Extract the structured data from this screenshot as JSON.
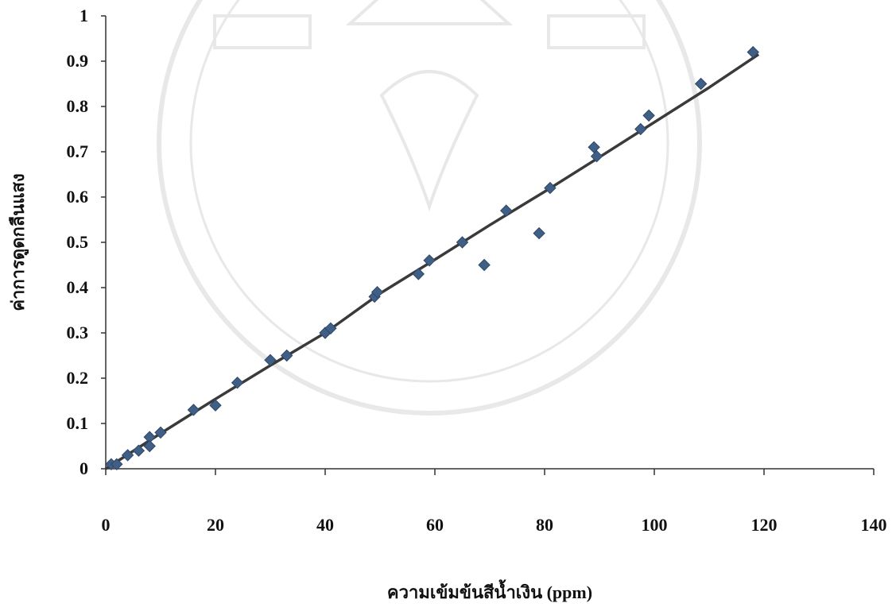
{
  "chart_data": {
    "type": "scatter",
    "title": "",
    "xlabel": "ความเข้มข้นสีน้ำเงิน (ppm)",
    "ylabel": "ค่าการดูดกลืนแสง",
    "xlim": [
      0,
      140
    ],
    "ylim": [
      0,
      1
    ],
    "x_ticks": [
      "0",
      "20",
      "40",
      "60",
      "80",
      "100",
      "120",
      "140"
    ],
    "y_ticks": [
      "0",
      "0.1",
      "0.2",
      "0.3",
      "0.4",
      "0.5",
      "0.6",
      "0.7",
      "0.8",
      "0.9",
      "1"
    ],
    "grid": false,
    "legend": "none",
    "marker_color": "#3f5f87",
    "trendline_color": "#3a3a3a",
    "series": [
      {
        "x": [
          1,
          2,
          4,
          6,
          8,
          8,
          10,
          16,
          20,
          24,
          30,
          33,
          40,
          41,
          49,
          49.5,
          57,
          59,
          65,
          69,
          73,
          79,
          81,
          89,
          89.5,
          97.5,
          99,
          108.5,
          118
        ],
        "y": [
          0.01,
          0.01,
          0.03,
          0.04,
          0.07,
          0.05,
          0.08,
          0.13,
          0.14,
          0.19,
          0.24,
          0.25,
          0.3,
          0.31,
          0.38,
          0.39,
          0.43,
          0.46,
          0.5,
          0.45,
          0.57,
          0.52,
          0.62,
          0.71,
          0.69,
          0.75,
          0.78,
          0.85,
          0.92
        ]
      }
    ],
    "trendline": {
      "x": [
        0,
        10,
        20,
        30,
        40,
        50,
        60,
        70,
        80,
        90,
        100,
        110,
        119
      ],
      "y": [
        0.0,
        0.078,
        0.154,
        0.228,
        0.3,
        0.387,
        0.462,
        0.538,
        0.612,
        0.688,
        0.765,
        0.842,
        0.915
      ]
    }
  }
}
